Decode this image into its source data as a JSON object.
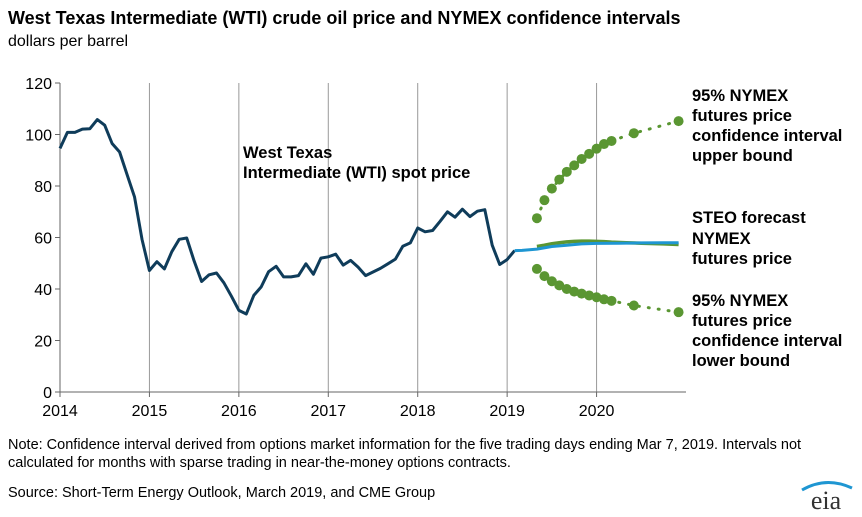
{
  "title": "West Texas Intermediate (WTI) crude oil price and NYMEX confidence intervals",
  "subtitle": "dollars per barrel",
  "note": "Note: Confidence interval derived from options market information for the five trading days ending Mar 7, 2019. Intervals not calculated for months with sparse trading in near-the-money options contracts.",
  "source": "Source: Short-Term Energy Outlook, March 2019, and CME Group",
  "logo_text": "eia",
  "colors": {
    "wti": "#0f3c5a",
    "steo": "#1e96d2",
    "nymex": "#5a9632",
    "grid": "#999999"
  },
  "labels": {
    "wti": [
      "West Texas",
      "Intermediate (WTI) spot price"
    ],
    "upper": [
      "95% NYMEX",
      "futures price",
      "confidence interval",
      "upper bound"
    ],
    "steo": "STEO forecast",
    "nymex": [
      "NYMEX",
      "futures price"
    ],
    "lower": [
      "95% NYMEX",
      "futures price",
      "confidence interval",
      "lower bound"
    ]
  },
  "chart_data": {
    "type": "line",
    "xlabel": "",
    "ylabel": "",
    "xlim": [
      2014.0,
      2021.0
    ],
    "ylim": [
      0,
      120
    ],
    "x_ticks": [
      "2014",
      "2015",
      "2016",
      "2017",
      "2018",
      "2019",
      "2020"
    ],
    "y_ticks": [
      "0",
      "20",
      "40",
      "60",
      "80",
      "100",
      "120"
    ],
    "grid": "vertical",
    "series": [
      {
        "name": "West Texas Intermediate (WTI) spot price",
        "x": [
          2014.0,
          2014.083,
          2014.167,
          2014.25,
          2014.333,
          2014.417,
          2014.5,
          2014.583,
          2014.667,
          2014.75,
          2014.833,
          2014.917,
          2015.0,
          2015.083,
          2015.167,
          2015.25,
          2015.333,
          2015.417,
          2015.5,
          2015.583,
          2015.667,
          2015.75,
          2015.833,
          2015.917,
          2016.0,
          2016.083,
          2016.167,
          2016.25,
          2016.333,
          2016.417,
          2016.5,
          2016.583,
          2016.667,
          2016.75,
          2016.833,
          2016.917,
          2017.0,
          2017.083,
          2017.167,
          2017.25,
          2017.333,
          2017.417,
          2017.5,
          2017.583,
          2017.667,
          2017.75,
          2017.833,
          2017.917,
          2018.0,
          2018.083,
          2018.167,
          2018.25,
          2018.333,
          2018.417,
          2018.5,
          2018.583,
          2018.667,
          2018.75,
          2018.833,
          2018.917,
          2019.0,
          2019.083
        ],
        "values": [
          94.6,
          100.8,
          100.8,
          102.1,
          102.2,
          105.8,
          103.6,
          96.5,
          93.2,
          84.4,
          75.8,
          59.3,
          47.2,
          50.6,
          47.8,
          54.5,
          59.3,
          59.8,
          50.9,
          42.9,
          45.5,
          46.2,
          42.4,
          37.2,
          31.7,
          30.3,
          37.5,
          40.8,
          46.7,
          48.8,
          44.7,
          44.7,
          45.2,
          49.8,
          45.7,
          52.0,
          52.5,
          53.5,
          49.3,
          51.1,
          48.5,
          45.2,
          46.6,
          48.0,
          49.8,
          51.6,
          56.6,
          57.9,
          63.7,
          62.2,
          62.7,
          66.3,
          70.0,
          67.9,
          71.0,
          68.1,
          70.2,
          70.8,
          57.0,
          49.5,
          51.4,
          54.9
        ]
      },
      {
        "name": "STEO forecast",
        "x": [
          2019.083,
          2019.167,
          2019.333,
          2019.5,
          2019.667,
          2019.833,
          2020.0,
          2020.25,
          2020.5,
          2020.75,
          2020.917
        ],
        "values": [
          54.9,
          55.0,
          55.5,
          56.5,
          57.0,
          57.5,
          57.7,
          57.8,
          57.9,
          58.0,
          58.0
        ]
      },
      {
        "name": "NYMEX futures price",
        "x": [
          2019.333,
          2019.417,
          2019.5,
          2019.583,
          2019.667,
          2019.75,
          2019.833,
          2019.917,
          2020.0,
          2020.083,
          2020.167,
          2020.333,
          2020.5,
          2020.75,
          2020.917
        ],
        "values": [
          56.5,
          57.0,
          57.6,
          58.0,
          58.3,
          58.5,
          58.6,
          58.6,
          58.5,
          58.4,
          58.2,
          58.0,
          57.8,
          57.5,
          57.3
        ]
      },
      {
        "name": "95% NYMEX futures price confidence interval upper bound",
        "x": [
          2019.333,
          2019.417,
          2019.5,
          2019.583,
          2019.667,
          2019.75,
          2019.833,
          2019.917,
          2020.0,
          2020.083,
          2020.167,
          2020.417,
          2020.917
        ],
        "values": [
          67.5,
          74.5,
          79.0,
          82.5,
          85.5,
          88.0,
          90.5,
          92.5,
          94.5,
          96.3,
          97.5,
          100.5,
          105.2
        ]
      },
      {
        "name": "95% NYMEX futures price confidence interval lower bound",
        "x": [
          2019.333,
          2019.417,
          2019.5,
          2019.583,
          2019.667,
          2019.75,
          2019.833,
          2019.917,
          2020.0,
          2020.083,
          2020.167,
          2020.417,
          2020.917
        ],
        "values": [
          47.8,
          45.0,
          43.0,
          41.4,
          40.0,
          39.0,
          38.2,
          37.5,
          36.8,
          36.0,
          35.4,
          33.6,
          31.0
        ]
      }
    ]
  }
}
